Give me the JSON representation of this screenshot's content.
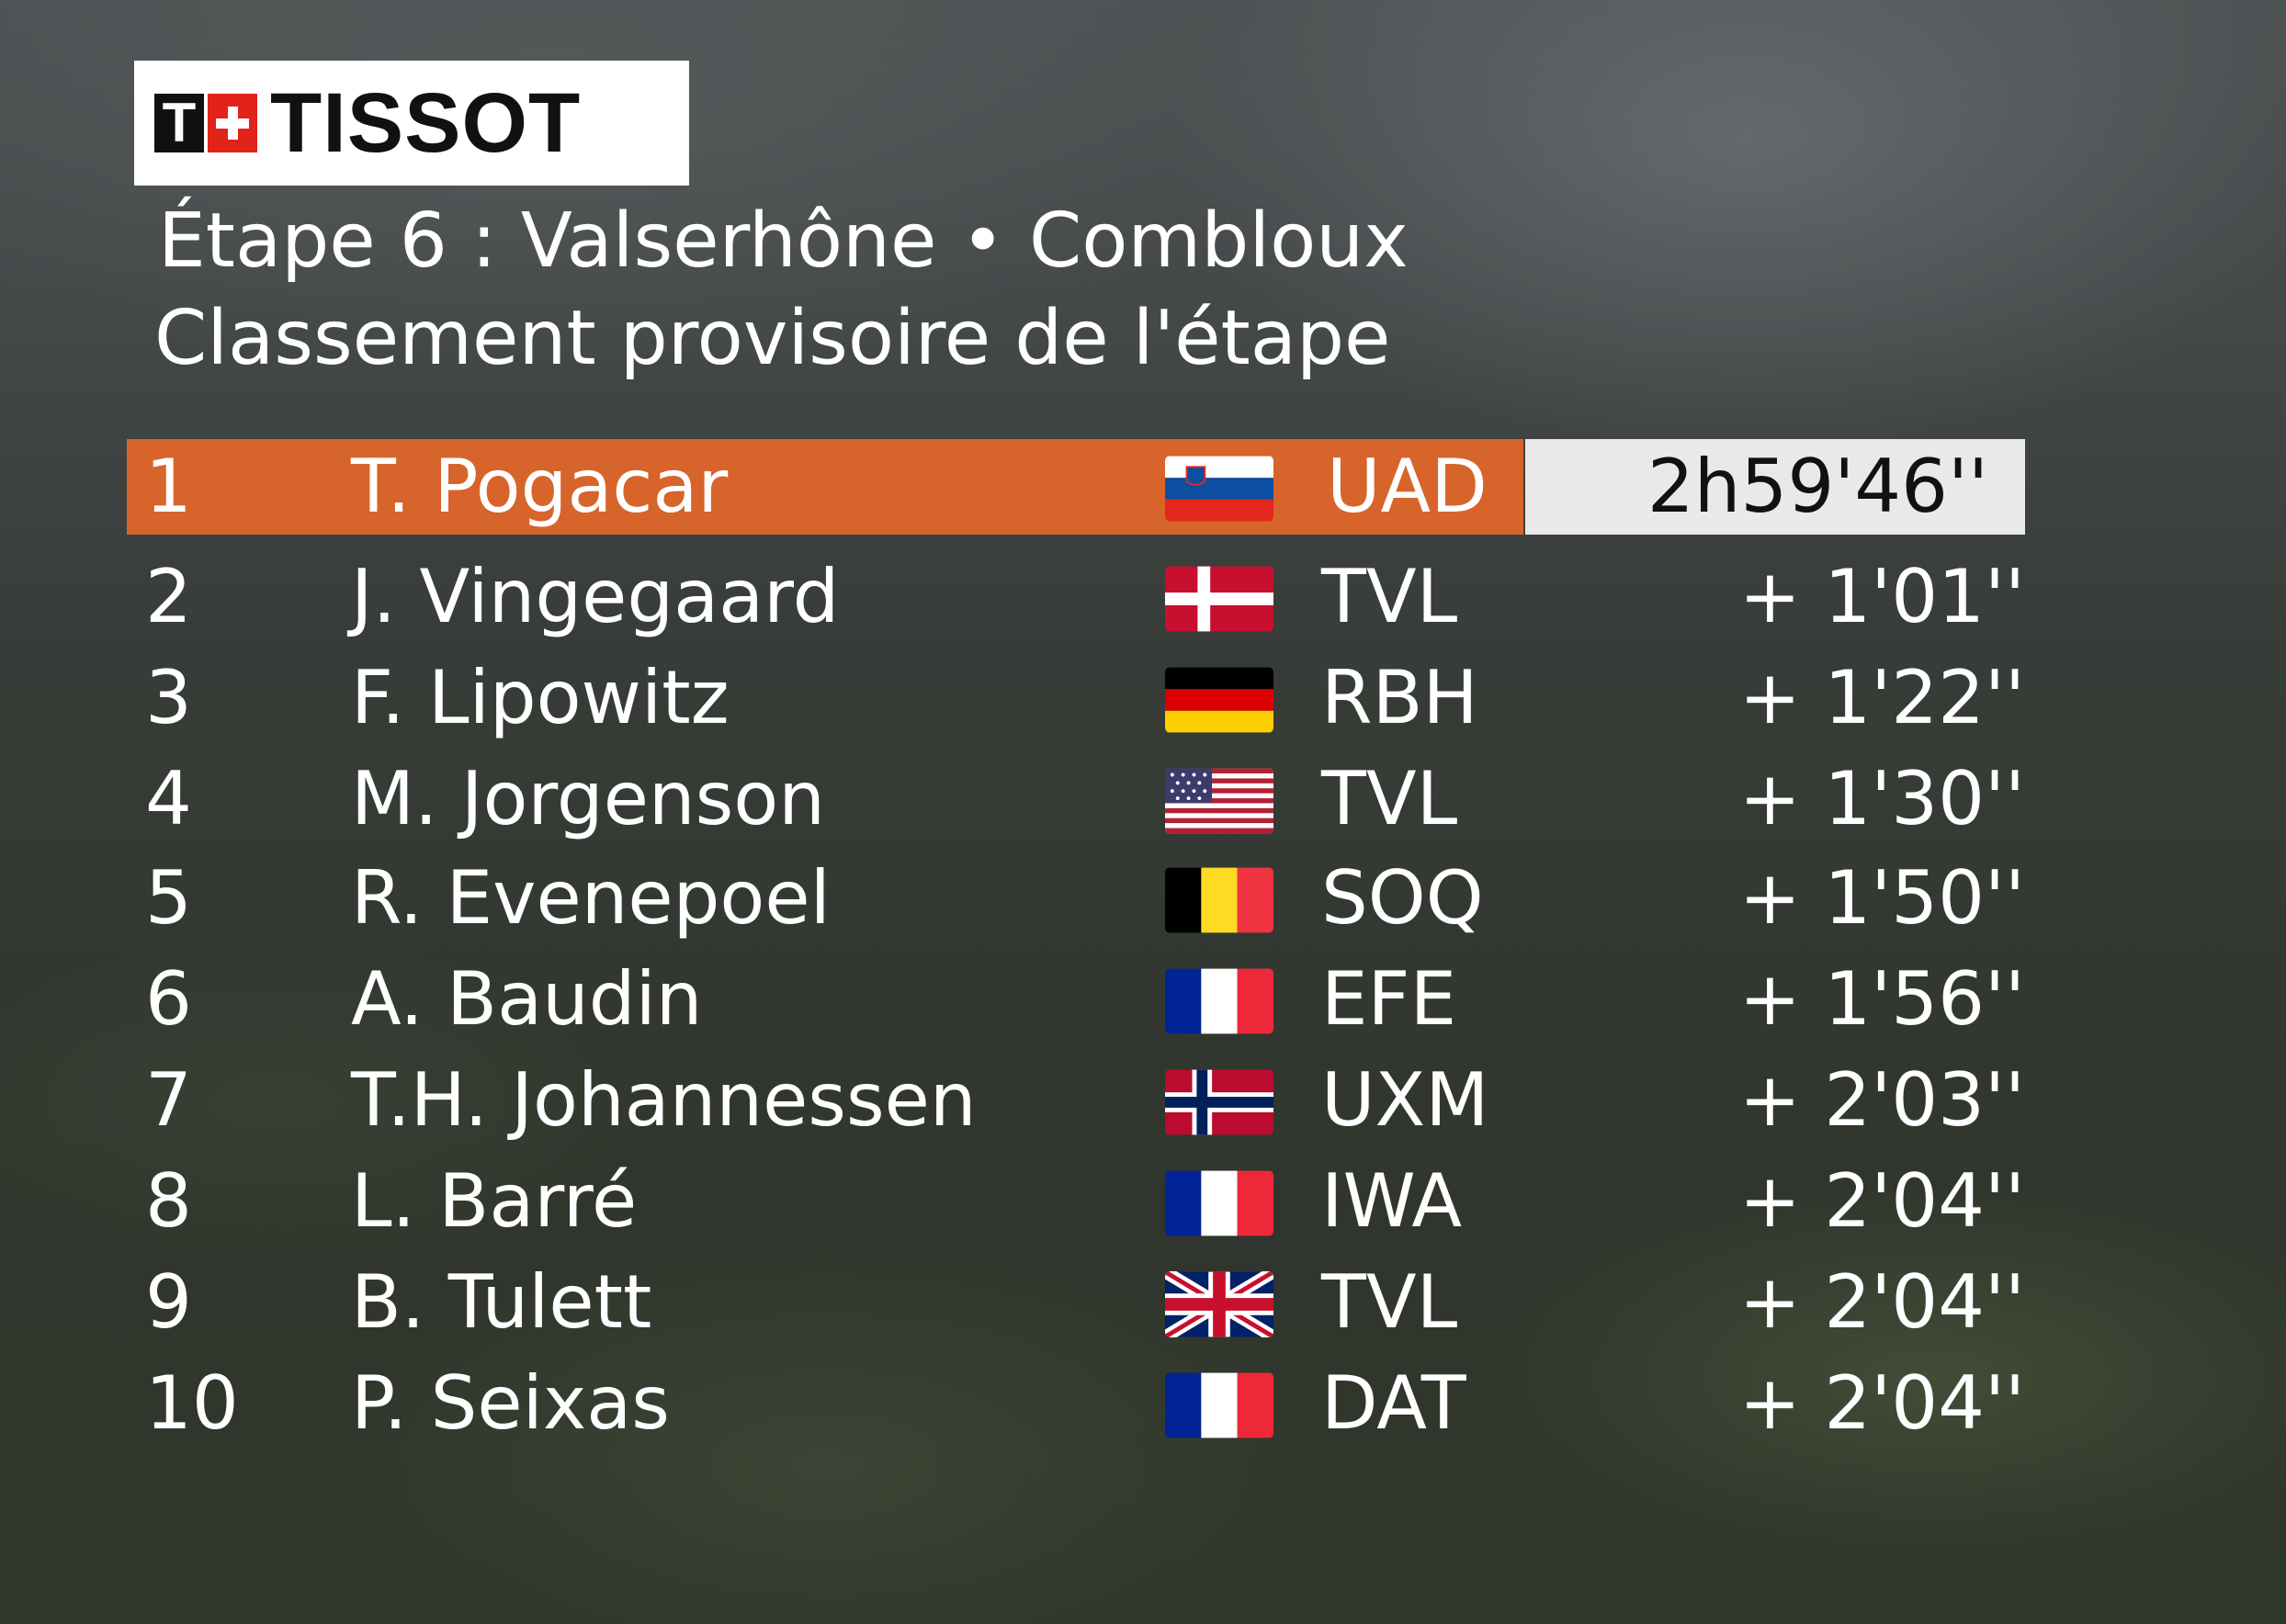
{
  "brand": {
    "logo_letter": "T",
    "logo_text": "TISSOT"
  },
  "header": {
    "stage_line": "Étape 6 : Valserhône •  Combloux",
    "subtitle": "Classement provisoire de l'étape"
  },
  "colors": {
    "leader_band": "#d7642a",
    "time_box": "#e9e9e9"
  },
  "standings": [
    {
      "pos": "1",
      "name": "T. Pogacar",
      "flag": "slovenia-flag-icon",
      "team": "UAD",
      "time": "2h59'46''"
    },
    {
      "pos": "2",
      "name": "J. Vingegaard",
      "flag": "denmark-flag-icon",
      "team": "TVL",
      "time": "+ 1'01''"
    },
    {
      "pos": "3",
      "name": "F. Lipowitz",
      "flag": "germany-flag-icon",
      "team": "RBH",
      "time": "+ 1'22''"
    },
    {
      "pos": "4",
      "name": "M. Jorgenson",
      "flag": "usa-flag-icon",
      "team": "TVL",
      "time": "+ 1'30''"
    },
    {
      "pos": "5",
      "name": "R. Evenepoel",
      "flag": "belgium-flag-icon",
      "team": "SOQ",
      "time": "+ 1'50''"
    },
    {
      "pos": "6",
      "name": "A. Baudin",
      "flag": "france-flag-icon",
      "team": "EFE",
      "time": "+ 1'56''"
    },
    {
      "pos": "7",
      "name": "T.H. Johannessen",
      "flag": "norway-flag-icon",
      "team": "UXM",
      "time": "+ 2'03''"
    },
    {
      "pos": "8",
      "name": "L. Barré",
      "flag": "france-flag-icon",
      "team": "IWA",
      "time": "+ 2'04''"
    },
    {
      "pos": "9",
      "name": "B. Tulett",
      "flag": "uk-flag-icon",
      "team": "TVL",
      "time": "+ 2'04''"
    },
    {
      "pos": "10",
      "name": "P. Seixas",
      "flag": "france-flag-icon",
      "team": "DAT",
      "time": "+ 2'04''"
    }
  ]
}
